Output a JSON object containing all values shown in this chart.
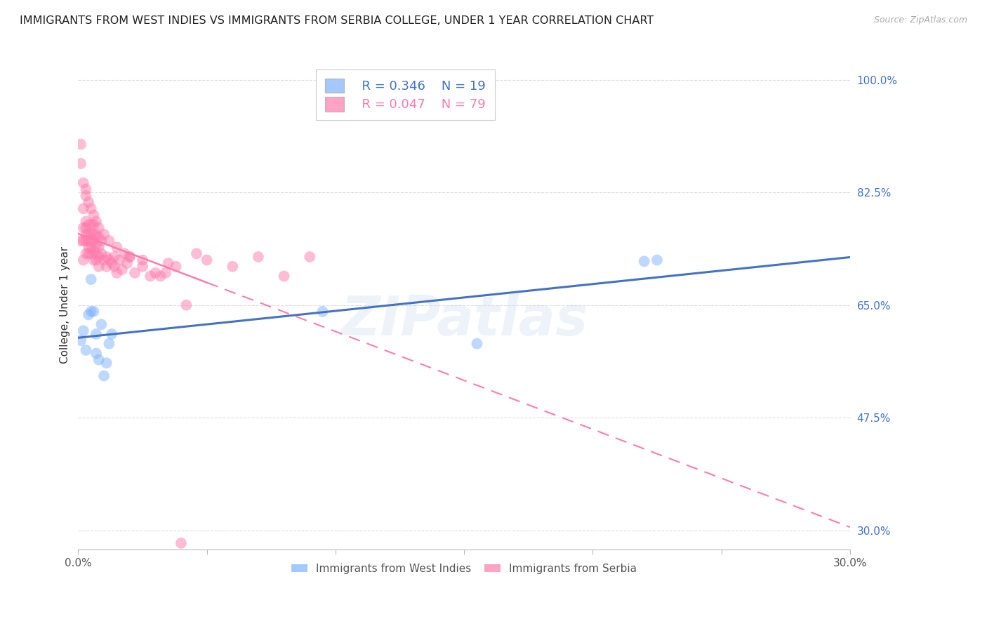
{
  "title": "IMMIGRANTS FROM WEST INDIES VS IMMIGRANTS FROM SERBIA COLLEGE, UNDER 1 YEAR CORRELATION CHART",
  "source": "Source: ZipAtlas.com",
  "ylabel": "College, Under 1 year",
  "watermark": "ZIPatlas",
  "xmin": 0.0,
  "xmax": 0.3,
  "ymin": 0.27,
  "ymax": 1.03,
  "yticks": [
    0.3,
    0.475,
    0.65,
    0.825,
    1.0
  ],
  "ytick_labels": [
    "30.0%",
    "47.5%",
    "65.0%",
    "82.5%",
    "100.0%"
  ],
  "xticks": [
    0.0,
    0.05,
    0.1,
    0.15,
    0.2,
    0.25,
    0.3
  ],
  "xtick_labels": [
    "0.0%",
    "",
    "",
    "",
    "",
    "",
    "30.0%"
  ],
  "legend_blue_r": "R = 0.346",
  "legend_blue_n": "N = 19",
  "legend_pink_r": "R = 0.047",
  "legend_pink_n": "N = 79",
  "blue_color": "#7EB3FF",
  "pink_color": "#FF7BAC",
  "blue_line_color": "#4472C4",
  "pink_line_color": "#FF7BAC",
  "wi_x": [
    0.001,
    0.002,
    0.003,
    0.004,
    0.005,
    0.005,
    0.006,
    0.007,
    0.007,
    0.008,
    0.009,
    0.01,
    0.011,
    0.012,
    0.013,
    0.095,
    0.155,
    0.22,
    0.225
  ],
  "wi_y": [
    0.595,
    0.61,
    0.58,
    0.635,
    0.69,
    0.64,
    0.64,
    0.575,
    0.605,
    0.565,
    0.62,
    0.54,
    0.56,
    0.59,
    0.605,
    0.64,
    0.59,
    0.718,
    0.72
  ],
  "sb_x": [
    0.001,
    0.001,
    0.002,
    0.002,
    0.002,
    0.002,
    0.003,
    0.003,
    0.003,
    0.003,
    0.003,
    0.004,
    0.004,
    0.004,
    0.004,
    0.004,
    0.005,
    0.005,
    0.005,
    0.005,
    0.005,
    0.006,
    0.006,
    0.006,
    0.006,
    0.006,
    0.007,
    0.007,
    0.007,
    0.007,
    0.008,
    0.008,
    0.008,
    0.008,
    0.009,
    0.009,
    0.01,
    0.011,
    0.011,
    0.012,
    0.013,
    0.014,
    0.014,
    0.015,
    0.016,
    0.017,
    0.019,
    0.02,
    0.022,
    0.025,
    0.028,
    0.03,
    0.032,
    0.034,
    0.038,
    0.042,
    0.046,
    0.05,
    0.06,
    0.07,
    0.08,
    0.09,
    0.001,
    0.002,
    0.003,
    0.003,
    0.004,
    0.005,
    0.006,
    0.007,
    0.008,
    0.01,
    0.012,
    0.015,
    0.018,
    0.02,
    0.025,
    0.035,
    0.04
  ],
  "sb_y": [
    0.75,
    0.87,
    0.77,
    0.8,
    0.75,
    0.72,
    0.78,
    0.76,
    0.75,
    0.73,
    0.77,
    0.76,
    0.75,
    0.74,
    0.73,
    0.775,
    0.76,
    0.75,
    0.74,
    0.73,
    0.775,
    0.76,
    0.75,
    0.735,
    0.72,
    0.775,
    0.76,
    0.745,
    0.73,
    0.72,
    0.755,
    0.74,
    0.725,
    0.71,
    0.75,
    0.73,
    0.72,
    0.725,
    0.71,
    0.72,
    0.715,
    0.71,
    0.725,
    0.7,
    0.72,
    0.705,
    0.715,
    0.725,
    0.7,
    0.71,
    0.695,
    0.7,
    0.695,
    0.7,
    0.71,
    0.65,
    0.73,
    0.72,
    0.71,
    0.725,
    0.695,
    0.725,
    0.9,
    0.84,
    0.83,
    0.82,
    0.81,
    0.8,
    0.79,
    0.78,
    0.77,
    0.76,
    0.75,
    0.74,
    0.73,
    0.725,
    0.72,
    0.715,
    0.28
  ]
}
